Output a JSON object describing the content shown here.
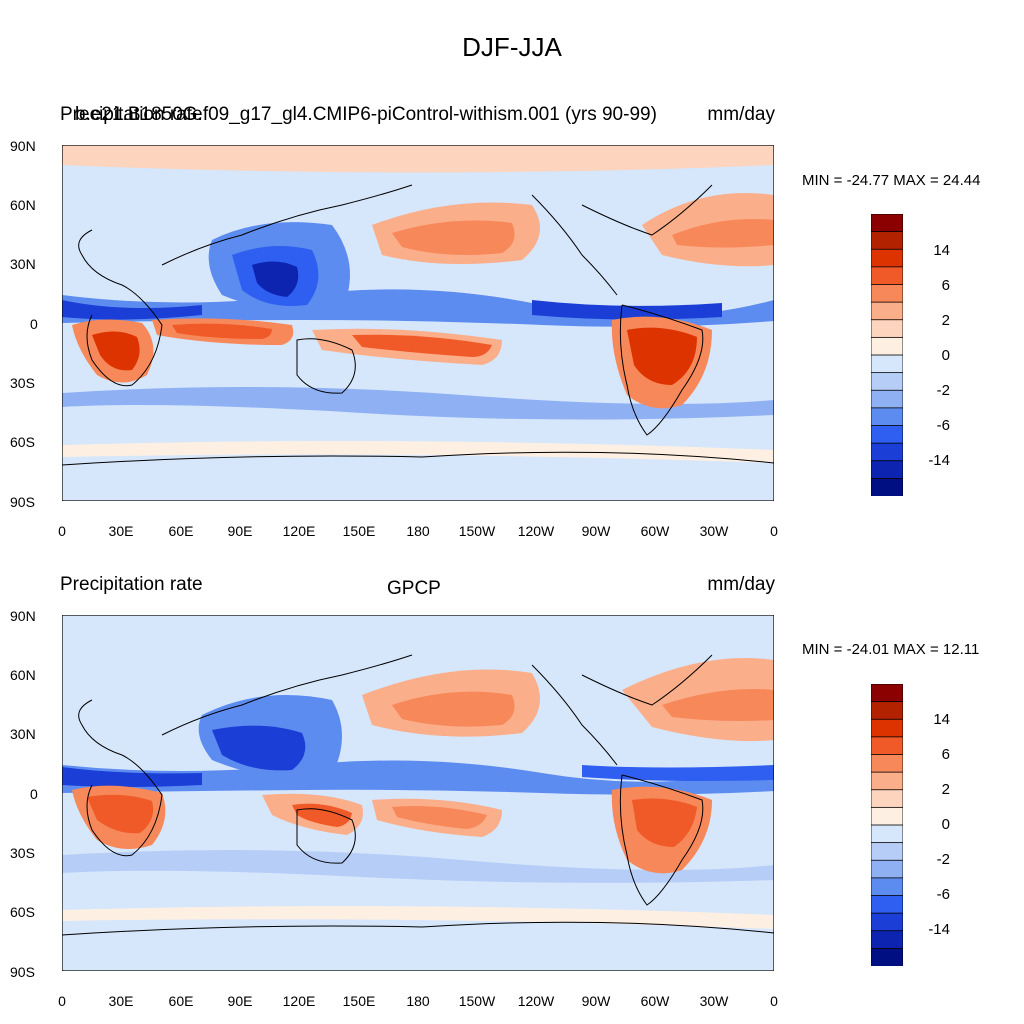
{
  "title": "DJF-JJA",
  "panels": [
    {
      "left_label": "Precipitation rate",
      "center_label": "b.e21.B1850G.f09_g17_gl4.CMIP6-piControl-withism.001 (yrs 90-99)",
      "right_label": "mm/day",
      "minmax": "MIN = -24.77 MAX =  24.44"
    },
    {
      "left_label": "Precipitation rate",
      "center_label": "GPCP",
      "right_label": "mm/day",
      "minmax": "MIN = -24.01 MAX =  12.11"
    }
  ],
  "lat_labels": [
    "90N",
    "60N",
    "30N",
    "0",
    "30S",
    "60S",
    "90S"
  ],
  "lon_labels": [
    "0",
    "30E",
    "60E",
    "90E",
    "120E",
    "150E",
    "180",
    "150W",
    "120W",
    "90W",
    "60W",
    "30W",
    "0"
  ],
  "colorbar": {
    "labels": [
      "14",
      "6",
      "2",
      "0",
      "-2",
      "-6",
      "-14"
    ],
    "colors": [
      "#8b0000",
      "#b22200",
      "#dd3300",
      "#f05a28",
      "#f7885a",
      "#fbae8a",
      "#fdd4bd",
      "#fdf0e3",
      "#d6e6fb",
      "#b6cdf7",
      "#8fb1f3",
      "#5d8cf0",
      "#2f5ff0",
      "#1b3fd6",
      "#0c24b0",
      "#000f82"
    ]
  }
}
